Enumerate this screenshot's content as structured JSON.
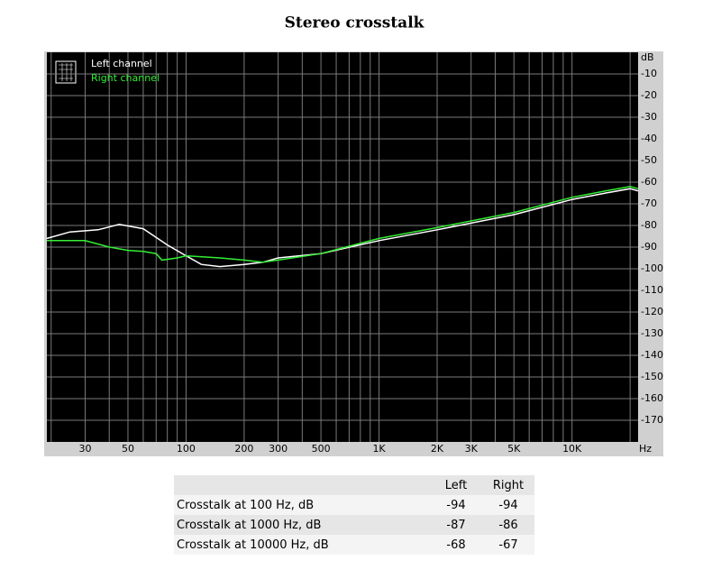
{
  "chart_data": {
    "type": "line",
    "title": "Stereo crosstalk",
    "xscale": "log",
    "xlim": [
      19,
      22000
    ],
    "xticks": [
      30,
      50,
      100,
      200,
      300,
      500,
      {
        "value": 1000,
        "label": "1K"
      },
      {
        "value": 2000,
        "label": "2K"
      },
      {
        "value": 3000,
        "label": "3K"
      },
      {
        "value": 5000,
        "label": "5K"
      },
      {
        "value": 10000,
        "label": "10K"
      }
    ],
    "xgrid": [
      20,
      30,
      40,
      50,
      60,
      70,
      80,
      90,
      100,
      200,
      300,
      400,
      500,
      600,
      700,
      800,
      900,
      1000,
      2000,
      3000,
      4000,
      5000,
      6000,
      7000,
      8000,
      9000,
      10000,
      20000
    ],
    "x_unit": "Hz",
    "y_unit": "dB",
    "ylim": [
      -180,
      0
    ],
    "yticks": [
      -10,
      -20,
      -30,
      -40,
      -50,
      -60,
      -70,
      -80,
      -90,
      -100,
      -110,
      -120,
      -130,
      -140,
      -150,
      -160,
      -170
    ],
    "grid": true,
    "series": [
      {
        "name": "Left channel",
        "color": "#ffffff",
        "x": [
          19,
          25,
          35,
          45,
          60,
          80,
          100,
          120,
          150,
          200,
          250,
          300,
          500,
          1000,
          2000,
          5000,
          10000,
          15000,
          20000,
          22000
        ],
        "values": [
          -86,
          -83,
          -82,
          -79.5,
          -81.5,
          -89,
          -94,
          -98,
          -99,
          -98,
          -97,
          -95,
          -93,
          -87,
          -82,
          -75,
          -68,
          -65,
          -63,
          -64
        ]
      },
      {
        "name": "Right channel",
        "color": "#33ee33",
        "x": [
          19,
          30,
          40,
          50,
          60,
          70,
          75,
          90,
          100,
          150,
          200,
          250,
          300,
          500,
          1000,
          2000,
          5000,
          10000,
          15000,
          20000,
          22000
        ],
        "values": [
          -87,
          -87,
          -90,
          -91.5,
          -92,
          -93,
          -96,
          -95,
          -94,
          -95,
          -96,
          -97,
          -96,
          -93,
          -86,
          -81,
          -74,
          -67,
          -64,
          -62,
          -63
        ]
      }
    ]
  },
  "table": {
    "header": [
      "Left",
      "Right"
    ],
    "rows": [
      [
        "Crosstalk at 100 Hz, dB",
        -94,
        -94
      ],
      [
        "Crosstalk at 1000 Hz, dB",
        -87,
        -86
      ],
      [
        "Crosstalk at 10000 Hz, dB",
        -68,
        -67
      ]
    ]
  }
}
